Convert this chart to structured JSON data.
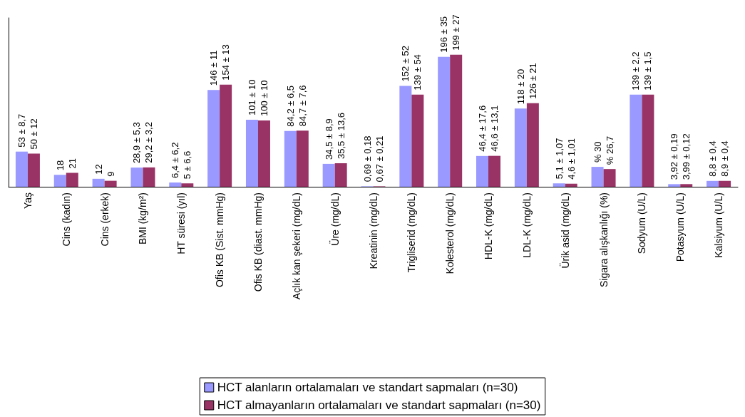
{
  "chart_data": {
    "type": "bar",
    "categories": [
      "Yaş",
      "Cins (kadın)",
      "Cins (erkek)",
      "BMI (kg/m²)",
      "HT süresi (yıl)",
      "Ofis KB (Sist. mmHg)",
      "Ofis KB (diast. mmHg)",
      "Açlık kan şekeri (mg/dL)",
      "Üre (mg/dL)",
      "Kreatinin (mg/dL)",
      "Trigliserid (mg/dL)",
      "Kolesterol (mg/dL)",
      "HDL-K (mg/dL)",
      "LDL-K (mg/dL)",
      "Ürik asid (mg/dL)",
      "Sigara alışkanlığı (%)",
      "Sodyum (U/L)",
      "Potasyum (U/L)",
      "Kalsiyum (U/L)"
    ],
    "series": [
      {
        "name": "HCT alanların ortalamaları ve standart sapmaları (n=30)",
        "color": "#9999ff",
        "values": [
          53,
          18,
          12,
          28.9,
          6.4,
          146,
          101,
          84.2,
          34.5,
          0.69,
          152,
          196,
          46.4,
          118,
          5.1,
          30,
          139,
          3.92,
          8.8
        ],
        "value_labels": [
          "53 ± 8,7",
          "18",
          "12",
          "28,9 ± 5,3",
          "6,4 ± 6,2",
          "146 ± 11",
          "101 ± 10",
          "84,2 ± 6,5",
          "34,5 ± 8,9",
          "0,69 ± 0,18",
          "152 ± 52",
          "196 ± 35",
          "46,4 ± 17,6",
          "118 ± 20",
          "5,1 ± 1,07",
          "% 30",
          "139 ± 2,2",
          "3,92 ± 0,19",
          "8,8 ± 0,4"
        ]
      },
      {
        "name": "HCT almayanların ortalamaları ve standart sapmaları (n=30)",
        "color": "#993366",
        "values": [
          50,
          21,
          9,
          29.2,
          5,
          154,
          100,
          84.7,
          35.5,
          0.67,
          139,
          199,
          46.6,
          126,
          4.6,
          26.7,
          139,
          3.99,
          8.9
        ],
        "value_labels": [
          "50 ± 12",
          "21",
          "9",
          "29,2 ± 3,2",
          "5 ± 6,6",
          "154 ± 13",
          "100 ± 10",
          "84,7 ± 7,6",
          "35,5 ± 13,6",
          "0,67 ± 0,21",
          "139 ± 54",
          "199 ± 27",
          "46,6 ± 13,1",
          "126 ± 21",
          "4,6 ± 1,01",
          "% 26,7",
          "139 ± 1,5",
          "3,99 ± 0,12",
          "8,9 ± 0,4"
        ]
      }
    ],
    "legend": "bottom",
    "tick_labels": "x",
    "grid": false
  }
}
